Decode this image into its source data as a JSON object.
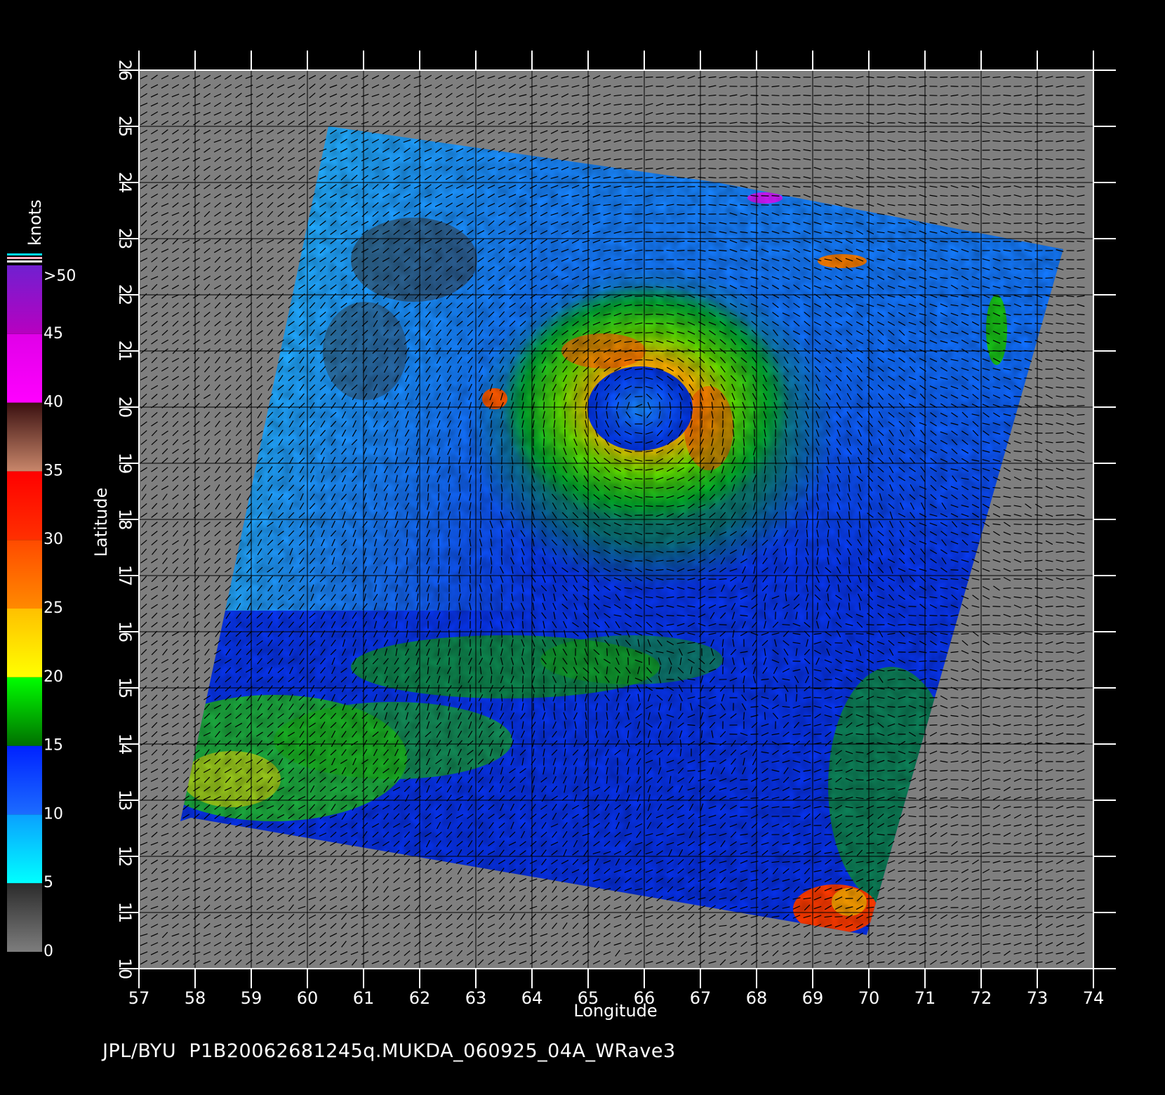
{
  "map": {
    "lon_axis": {
      "label": "Longitude",
      "ticks": [
        "57",
        "58",
        "59",
        "60",
        "61",
        "62",
        "63",
        "64",
        "65",
        "66",
        "67",
        "68",
        "69",
        "70",
        "71",
        "72",
        "73",
        "74"
      ],
      "range": [
        57,
        74
      ]
    },
    "lat_axis": {
      "label": "Latitude",
      "ticks": [
        "10",
        "11",
        "12",
        "13",
        "14",
        "15",
        "16",
        "17",
        "18",
        "19",
        "20",
        "21",
        "22",
        "23",
        "24",
        "25",
        "26"
      ],
      "range": [
        10,
        26
      ]
    },
    "grid": true,
    "scene": "satellite scatterometer wind speed swath with wind vectors; cyclone centered near 66.5E 20N; land masses in dark gray at upper right",
    "colors": {
      "background": "#000000",
      "no_data": "#7f7f7f",
      "land": "#505050",
      "grid": "#000000"
    }
  },
  "colorbar": {
    "unit": "knots",
    "labels": [
      ">50",
      "45",
      "40",
      "35",
      "30",
      "25",
      "20",
      "15",
      "10",
      "5",
      "0"
    ],
    "stops": [
      {
        "from": 0,
        "to": 5,
        "colors": [
          "#7d7d7d",
          "#2b2b2b"
        ]
      },
      {
        "from": 5,
        "to": 10,
        "colors": [
          "#00ffff",
          "#0aa0ff"
        ]
      },
      {
        "from": 10,
        "to": 15,
        "colors": [
          "#1c6cff",
          "#0022ff"
        ]
      },
      {
        "from": 15,
        "to": 20,
        "colors": [
          "#007000",
          "#00ff00"
        ]
      },
      {
        "from": 20,
        "to": 25,
        "colors": [
          "#ffff00",
          "#ffc000"
        ]
      },
      {
        "from": 25,
        "to": 30,
        "colors": [
          "#ff8a00",
          "#ff4a00"
        ]
      },
      {
        "from": 30,
        "to": 35,
        "colors": [
          "#ff3000",
          "#ff0000"
        ]
      },
      {
        "from": 35,
        "to": 40,
        "colors": [
          "#c8866a",
          "#3a1010"
        ]
      },
      {
        "from": 40,
        "to": 45,
        "colors": [
          "#ff00ff",
          "#e000e8"
        ]
      },
      {
        "from": 45,
        "to": 50,
        "colors": [
          "#b800c0",
          "#7020d0"
        ]
      }
    ]
  },
  "footer": {
    "text": "JPL/BYU  P1B20062681245q.MUKDA_060925_04A_WRave3"
  }
}
